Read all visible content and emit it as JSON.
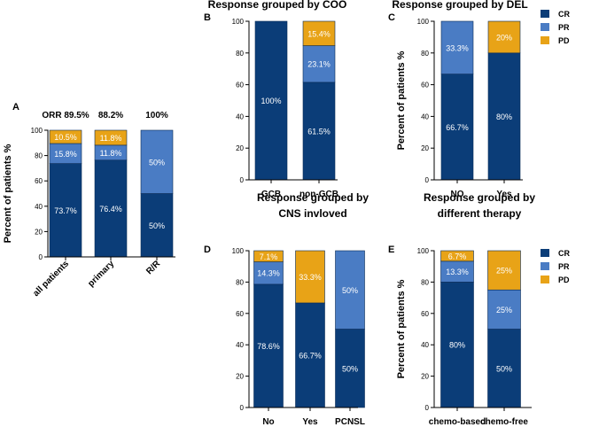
{
  "figure": {
    "legend_labels": [
      "CR",
      "PR",
      "PD"
    ]
  },
  "colors": {
    "CR": "#0b3d78",
    "PR": "#4a7cc4",
    "PD": "#e8a317",
    "text_on_dark": "#ffffff",
    "axis": "#000000"
  },
  "chart_data": [
    {
      "panel_letter": "A",
      "title": "",
      "type": "stacked-bar",
      "ylabel": "Percent of patients %",
      "ylim": [
        0,
        100
      ],
      "yticks": [
        0,
        20,
        40,
        60,
        80,
        100
      ],
      "categories": [
        "all patients",
        "primary",
        "R/R"
      ],
      "top_labels": [
        "ORR 89.5%",
        "88.2%",
        "100%"
      ],
      "series": [
        {
          "name": "CR",
          "values": [
            73.7,
            76.4,
            50
          ]
        },
        {
          "name": "PR",
          "values": [
            15.8,
            11.8,
            50
          ]
        },
        {
          "name": "PD",
          "values": [
            10.5,
            11.8,
            0
          ]
        }
      ],
      "labels": [
        [
          "73.7%",
          "15.8%",
          "10.5%"
        ],
        [
          "76.4%",
          "11.8%",
          "11.8%"
        ],
        [
          "50%",
          "50%",
          ""
        ]
      ],
      "legend": false
    },
    {
      "panel_letter": "B",
      "title": "Response grouped by COO",
      "type": "stacked-bar",
      "ylabel": "",
      "ylim": [
        0,
        100
      ],
      "yticks": [
        0,
        20,
        40,
        60,
        80,
        100
      ],
      "categories": [
        "GCB",
        "non-GCB"
      ],
      "top_labels": [],
      "series": [
        {
          "name": "CR",
          "values": [
            100,
            61.5
          ]
        },
        {
          "name": "PR",
          "values": [
            0,
            23.1
          ]
        },
        {
          "name": "PD",
          "values": [
            0,
            15.4
          ]
        }
      ],
      "labels": [
        [
          "100%",
          "",
          ""
        ],
        [
          "61.5%",
          "23.1%",
          "15.4%"
        ]
      ],
      "legend": false
    },
    {
      "panel_letter": "C",
      "title": "Response grouped by DEL",
      "type": "stacked-bar",
      "ylabel": "Percent of patients %",
      "ylim": [
        0,
        100
      ],
      "yticks": [
        0,
        20,
        40,
        60,
        80,
        100
      ],
      "categories": [
        "NO",
        "Yes"
      ],
      "top_labels": [],
      "series": [
        {
          "name": "CR",
          "values": [
            66.7,
            80
          ]
        },
        {
          "name": "PR",
          "values": [
            33.3,
            0
          ]
        },
        {
          "name": "PD",
          "values": [
            0,
            20
          ]
        }
      ],
      "labels": [
        [
          "66.7%",
          "33.3%",
          ""
        ],
        [
          "80%",
          "",
          "20%"
        ]
      ],
      "legend": true
    },
    {
      "panel_letter": "D",
      "title": "Response grouped by CNS invloved",
      "type": "stacked-bar",
      "ylabel": "",
      "ylim": [
        0,
        100
      ],
      "yticks": [
        0,
        20,
        40,
        60,
        80,
        100
      ],
      "categories": [
        "No",
        "Yes",
        "PCNSL"
      ],
      "top_labels": [],
      "series": [
        {
          "name": "CR",
          "values": [
            78.6,
            66.7,
            50
          ]
        },
        {
          "name": "PR",
          "values": [
            14.3,
            0,
            50
          ]
        },
        {
          "name": "PD",
          "values": [
            7.1,
            33.3,
            0
          ]
        }
      ],
      "labels": [
        [
          "78.6%",
          "14.3%",
          "7.1%"
        ],
        [
          "66.7%",
          "",
          "33.3%"
        ],
        [
          "50%",
          "50%",
          ""
        ]
      ],
      "legend": false
    },
    {
      "panel_letter": "E",
      "title": "Response grouped by different therapy",
      "type": "stacked-bar",
      "ylabel": "Percent of patients %",
      "ylim": [
        0,
        100
      ],
      "yticks": [
        0,
        20,
        40,
        60,
        80,
        100
      ],
      "categories": [
        "chemo-based",
        "chemo-free"
      ],
      "top_labels": [],
      "series": [
        {
          "name": "CR",
          "values": [
            80,
            50
          ]
        },
        {
          "name": "PR",
          "values": [
            13.3,
            25
          ]
        },
        {
          "name": "PD",
          "values": [
            6.7,
            25
          ]
        }
      ],
      "labels": [
        [
          "80%",
          "13.3%",
          "6.7%"
        ],
        [
          "50%",
          "25%",
          "25%"
        ]
      ],
      "legend": true
    }
  ]
}
